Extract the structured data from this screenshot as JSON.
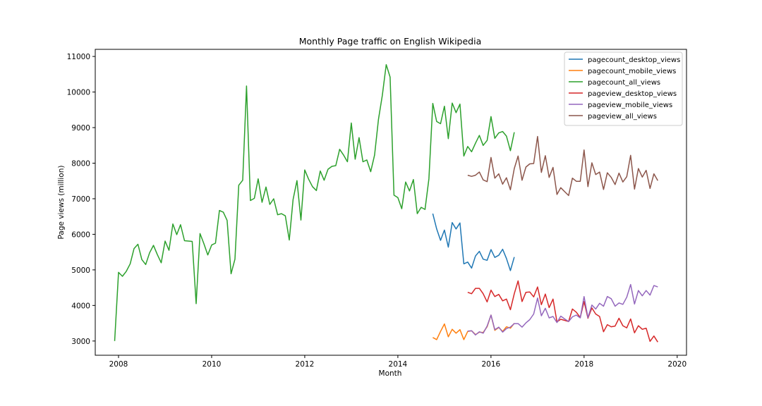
{
  "chart_data": {
    "type": "line",
    "title": "Monthly Page traffic on English Wikipedia",
    "xlabel": "Month",
    "ylabel": "Page views (million)",
    "xlim": [
      2007.5,
      2020.2
    ],
    "ylim": [
      2600,
      11200
    ],
    "xticks": [
      "2008",
      "2010",
      "2012",
      "2014",
      "2016",
      "2018",
      "2020"
    ],
    "yticks": [
      "3000",
      "4000",
      "5000",
      "6000",
      "7000",
      "8000",
      "9000",
      "10000",
      "11000"
    ],
    "legend_position": "top-right",
    "grid": false,
    "series": [
      {
        "name": "pagecount_desktop_views",
        "color": "#1f77b4",
        "x": [
          2014.75,
          2014.833,
          2014.917,
          2015.0,
          2015.083,
          2015.167,
          2015.25,
          2015.333,
          2015.417,
          2015.5,
          2015.583,
          2015.667,
          2015.75,
          2015.833,
          2015.917,
          2016.0,
          2016.083,
          2016.167,
          2016.25,
          2016.333,
          2016.417,
          2016.5
        ],
        "y": [
          6580,
          6150,
          5830,
          6120,
          5640,
          6330,
          6150,
          6320,
          5170,
          5220,
          5050,
          5390,
          5520,
          5300,
          5270,
          5570,
          5350,
          5410,
          5580,
          5320,
          4980,
          5360
        ]
      },
      {
        "name": "pagecount_mobile_views",
        "color": "#ff7f0e",
        "x": [
          2014.75,
          2014.833,
          2014.917,
          2015.0,
          2015.083,
          2015.167,
          2015.25,
          2015.333,
          2015.417,
          2015.5,
          2015.583,
          2015.667,
          2015.75,
          2015.833,
          2015.917,
          2016.0,
          2016.083,
          2016.167,
          2016.25,
          2016.333,
          2016.417,
          2016.5
        ],
        "y": [
          3100,
          3040,
          3270,
          3480,
          3120,
          3330,
          3220,
          3320,
          3040,
          3270,
          3290,
          3180,
          3250,
          3240,
          3400,
          3730,
          3300,
          3380,
          3270,
          3400,
          3360,
          3500
        ]
      },
      {
        "name": "pagecount_all_views",
        "color": "#2ca02c",
        "x": [
          2007.917,
          2008.0,
          2008.083,
          2008.167,
          2008.25,
          2008.333,
          2008.417,
          2008.5,
          2008.583,
          2008.667,
          2008.75,
          2008.833,
          2008.917,
          2009.0,
          2009.083,
          2009.167,
          2009.25,
          2009.333,
          2009.417,
          2009.5,
          2009.583,
          2009.667,
          2009.75,
          2009.833,
          2009.917,
          2010.0,
          2010.083,
          2010.167,
          2010.25,
          2010.333,
          2010.417,
          2010.5,
          2010.583,
          2010.667,
          2010.75,
          2010.833,
          2010.917,
          2011.0,
          2011.083,
          2011.167,
          2011.25,
          2011.333,
          2011.417,
          2011.5,
          2011.583,
          2011.667,
          2011.75,
          2011.833,
          2011.917,
          2012.0,
          2012.083,
          2012.167,
          2012.25,
          2012.333,
          2012.417,
          2012.5,
          2012.583,
          2012.667,
          2012.75,
          2012.833,
          2012.917,
          2013.0,
          2013.083,
          2013.167,
          2013.25,
          2013.333,
          2013.417,
          2013.5,
          2013.583,
          2013.667,
          2013.75,
          2013.833,
          2013.917,
          2014.0,
          2014.083,
          2014.167,
          2014.25,
          2014.333,
          2014.417,
          2014.5,
          2014.583,
          2014.667,
          2014.75,
          2014.833,
          2014.917,
          2015.0,
          2015.083,
          2015.167,
          2015.25,
          2015.333,
          2015.417,
          2015.5,
          2015.583,
          2015.667,
          2015.75,
          2015.833,
          2015.917,
          2016.0,
          2016.083,
          2016.167,
          2016.25,
          2016.333,
          2016.417,
          2016.5
        ],
        "y": [
          3000,
          4930,
          4820,
          4960,
          5170,
          5600,
          5720,
          5290,
          5150,
          5480,
          5690,
          5430,
          5200,
          5810,
          5550,
          6290,
          5990,
          6270,
          5820,
          5810,
          5800,
          4050,
          6020,
          5740,
          5420,
          5700,
          5750,
          6670,
          6620,
          6390,
          4890,
          5300,
          7380,
          7520,
          10170,
          6950,
          7010,
          7560,
          6900,
          7330,
          6840,
          7000,
          6550,
          6580,
          6520,
          5840,
          6980,
          7510,
          6400,
          7810,
          7550,
          7340,
          7230,
          7780,
          7520,
          7830,
          7910,
          7930,
          8390,
          8230,
          8040,
          9130,
          8110,
          8720,
          8040,
          8090,
          7760,
          8230,
          9230,
          9910,
          10770,
          10420,
          7100,
          7030,
          6720,
          7470,
          7220,
          7540,
          6580,
          6760,
          6700,
          7560,
          9680,
          9170,
          9110,
          9600,
          8690,
          9690,
          9420,
          9660,
          8200,
          8470,
          8320,
          8560,
          8780,
          8500,
          8640,
          9310,
          8700,
          8850,
          8890,
          8760,
          8350,
          8870
        ]
      },
      {
        "name": "pageview_desktop_views",
        "color": "#d62728",
        "x": [
          2015.5,
          2015.583,
          2015.667,
          2015.75,
          2015.833,
          2015.917,
          2016.0,
          2016.083,
          2016.167,
          2016.25,
          2016.333,
          2016.417,
          2016.5,
          2016.583,
          2016.667,
          2016.75,
          2016.833,
          2016.917,
          2017.0,
          2017.083,
          2017.167,
          2017.25,
          2017.333,
          2017.417,
          2017.5,
          2017.583,
          2017.667,
          2017.75,
          2017.833,
          2017.917,
          2018.0,
          2018.083,
          2018.167,
          2018.25,
          2018.333,
          2018.417,
          2018.5,
          2018.583,
          2018.667,
          2018.75,
          2018.833,
          2018.917,
          2019.0,
          2019.083,
          2019.167,
          2019.25,
          2019.333,
          2019.417,
          2019.5,
          2019.583
        ],
        "y": [
          4370,
          4330,
          4480,
          4480,
          4330,
          4100,
          4430,
          4250,
          4310,
          4130,
          4180,
          3880,
          4330,
          4690,
          4110,
          4370,
          4380,
          4240,
          4520,
          4020,
          4320,
          3940,
          4180,
          3540,
          3610,
          3580,
          3550,
          3900,
          3810,
          3660,
          4110,
          3640,
          3930,
          3760,
          3690,
          3260,
          3460,
          3400,
          3420,
          3640,
          3430,
          3370,
          3620,
          3230,
          3430,
          3330,
          3360,
          2990,
          3140,
          2970
        ]
      },
      {
        "name": "pageview_mobile_views",
        "color": "#9467bd",
        "x": [
          2015.5,
          2015.583,
          2015.667,
          2015.75,
          2015.833,
          2015.917,
          2016.0,
          2016.083,
          2016.167,
          2016.25,
          2016.333,
          2016.417,
          2016.5,
          2016.583,
          2016.667,
          2016.75,
          2016.833,
          2016.917,
          2017.0,
          2017.083,
          2017.167,
          2017.25,
          2017.333,
          2017.417,
          2017.5,
          2017.583,
          2017.667,
          2017.75,
          2017.833,
          2017.917,
          2018.0,
          2018.083,
          2018.167,
          2018.25,
          2018.333,
          2018.417,
          2018.5,
          2018.583,
          2018.667,
          2018.75,
          2018.833,
          2018.917,
          2019.0,
          2019.083,
          2019.167,
          2019.25,
          2019.333,
          2019.417,
          2019.5,
          2019.583
        ],
        "y": [
          3280,
          3290,
          3170,
          3260,
          3220,
          3420,
          3730,
          3320,
          3390,
          3250,
          3350,
          3390,
          3490,
          3490,
          3390,
          3510,
          3600,
          3760,
          4210,
          3710,
          3920,
          3650,
          3690,
          3520,
          3700,
          3620,
          3550,
          3680,
          3730,
          3650,
          4250,
          3660,
          4010,
          3900,
          4060,
          3980,
          4250,
          4190,
          3980,
          4070,
          4030,
          4230,
          4590,
          4040,
          4420,
          4270,
          4420,
          4290,
          4560,
          4520
        ]
      },
      {
        "name": "pageview_all_views",
        "color": "#8c564b",
        "x": [
          2015.5,
          2015.583,
          2015.667,
          2015.75,
          2015.833,
          2015.917,
          2016.0,
          2016.083,
          2016.167,
          2016.25,
          2016.333,
          2016.417,
          2016.5,
          2016.583,
          2016.667,
          2016.75,
          2016.833,
          2016.917,
          2017.0,
          2017.083,
          2017.167,
          2017.25,
          2017.333,
          2017.417,
          2017.5,
          2017.583,
          2017.667,
          2017.75,
          2017.833,
          2017.917,
          2018.0,
          2018.083,
          2018.167,
          2018.25,
          2018.333,
          2018.417,
          2018.5,
          2018.583,
          2018.667,
          2018.75,
          2018.833,
          2018.917,
          2019.0,
          2019.083,
          2019.167,
          2019.25,
          2019.333,
          2019.417,
          2019.5,
          2019.583
        ],
        "y": [
          7660,
          7630,
          7660,
          7750,
          7530,
          7480,
          8160,
          7580,
          7700,
          7410,
          7590,
          7250,
          7850,
          8200,
          7520,
          7890,
          7980,
          7990,
          8750,
          7740,
          8210,
          7600,
          7880,
          7120,
          7310,
          7200,
          7090,
          7580,
          7490,
          7490,
          8370,
          7340,
          8010,
          7680,
          7750,
          7260,
          7730,
          7600,
          7400,
          7720,
          7470,
          7620,
          8220,
          7270,
          7850,
          7610,
          7800,
          7290,
          7700,
          7510
        ]
      }
    ]
  }
}
